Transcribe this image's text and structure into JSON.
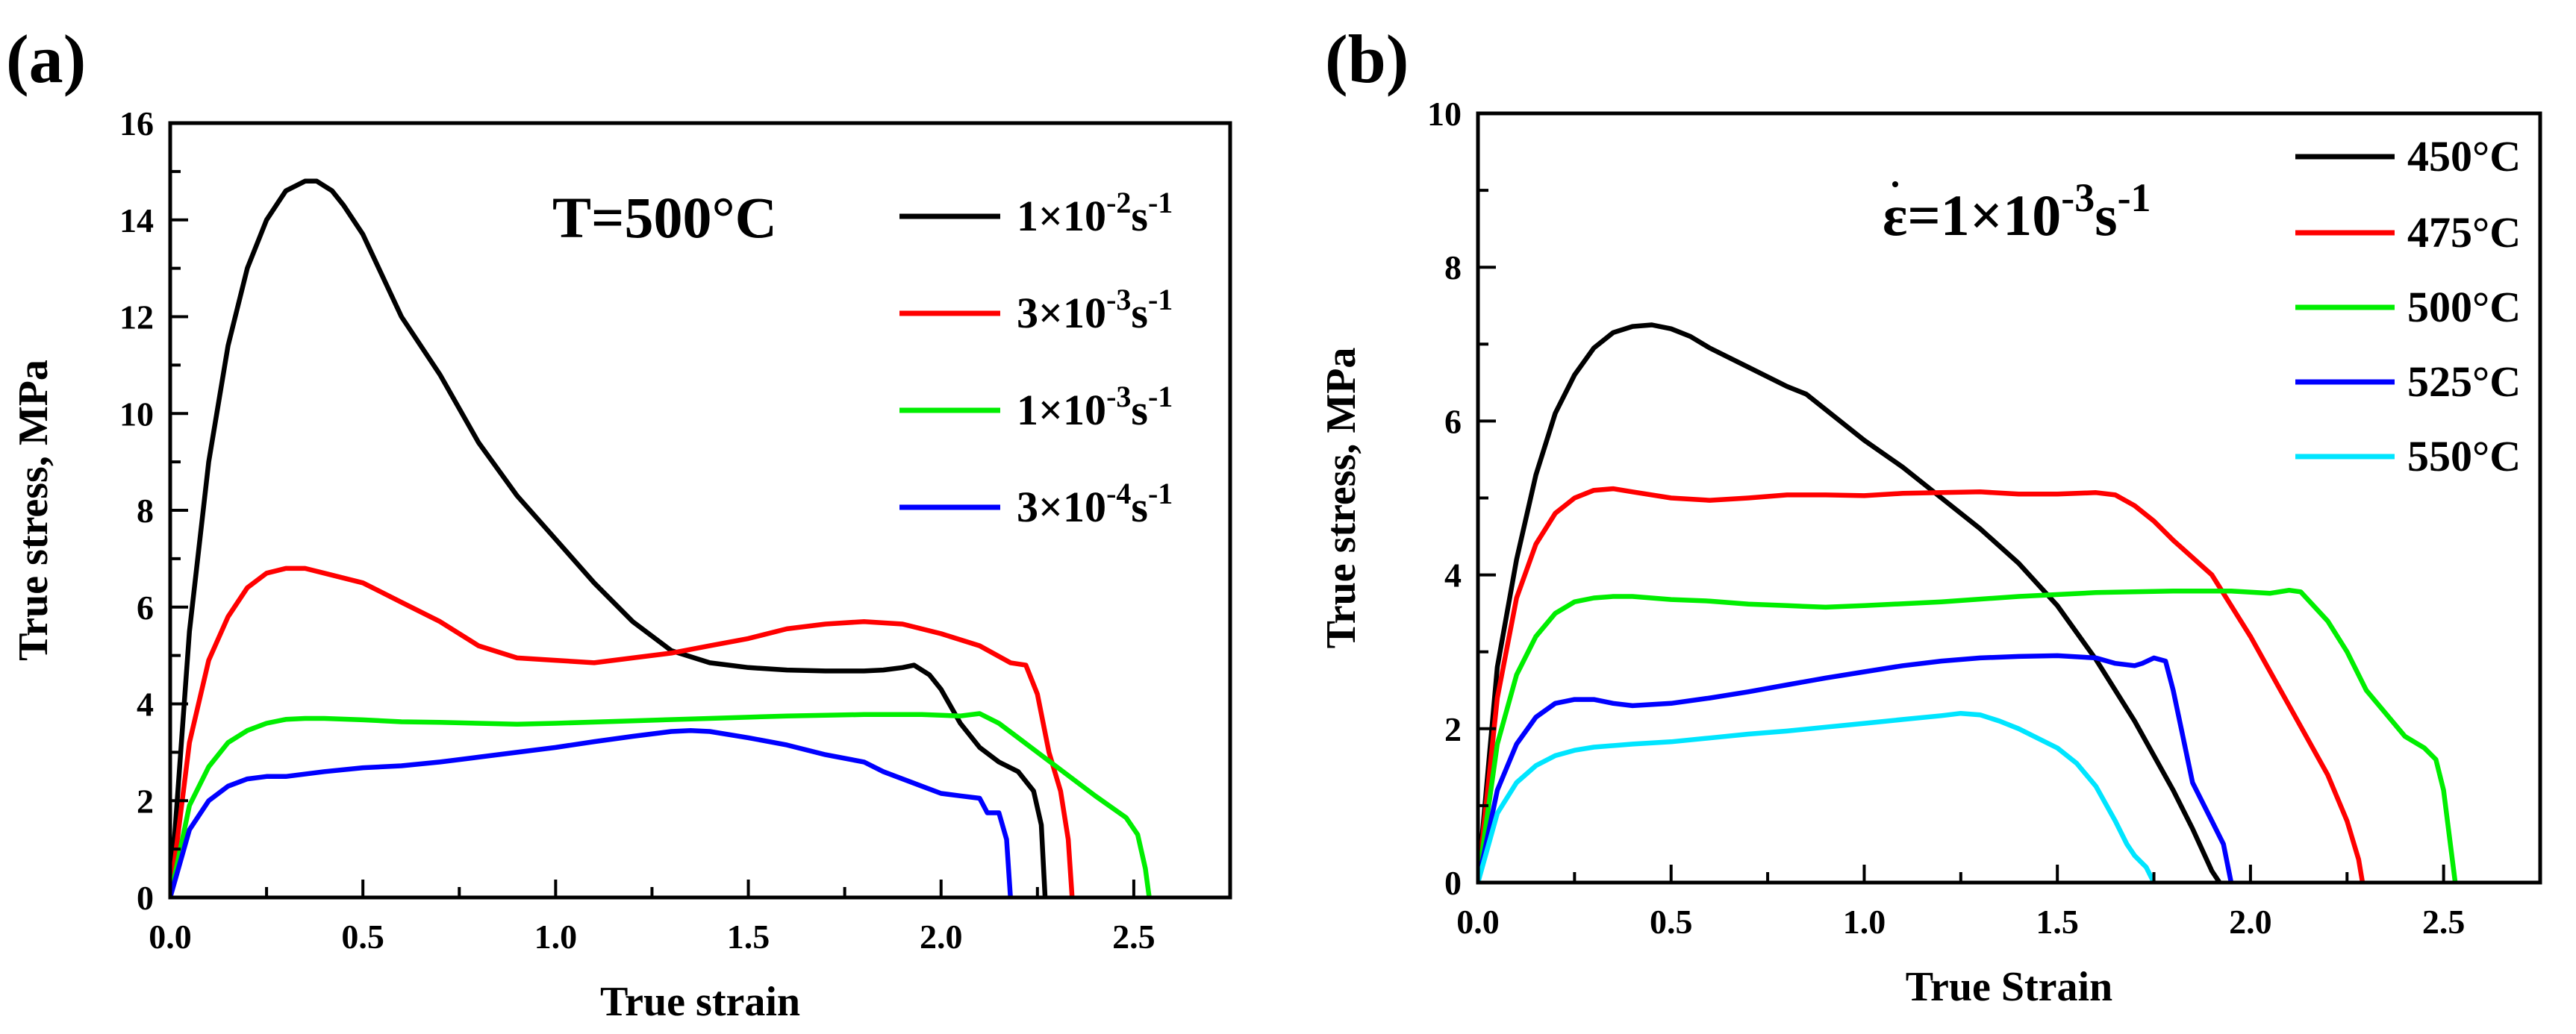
{
  "chart_data": [
    {
      "panel_label": "(a)",
      "type": "line",
      "xlabel": "True strain",
      "ylabel": "True stress, MPa",
      "xlim": [
        0.0,
        2.75
      ],
      "ylim": [
        0,
        16
      ],
      "xticks": [
        0.0,
        0.5,
        1.0,
        1.5,
        2.0,
        2.5
      ],
      "xtick_labels": [
        "0.0",
        "0.5",
        "1.0",
        "1.5",
        "2.0",
        "2.5"
      ],
      "yticks": [
        0,
        2,
        4,
        6,
        8,
        10,
        12,
        14,
        16
      ],
      "ytick_labels": [
        "0",
        "2",
        "4",
        "6",
        "8",
        "10",
        "12",
        "14",
        "16"
      ],
      "annotation": {
        "prefix": "T=500°C",
        "sup": "",
        "suffix": "",
        "sup2": ""
      },
      "legend_position": "top-right",
      "series": [
        {
          "name": "1×10-2s-1",
          "legend": {
            "base": "1×10",
            "exp": "-2",
            "unit": "s",
            "unit_exp": "-1"
          },
          "color": "#000000",
          "x": [
            0.0,
            0.05,
            0.1,
            0.15,
            0.2,
            0.25,
            0.3,
            0.35,
            0.38,
            0.42,
            0.45,
            0.5,
            0.6,
            0.7,
            0.8,
            0.9,
            1.0,
            1.1,
            1.2,
            1.3,
            1.4,
            1.5,
            1.6,
            1.7,
            1.8,
            1.85,
            1.9,
            1.93,
            1.97,
            2.0,
            2.05,
            2.1,
            2.15,
            2.2,
            2.24,
            2.26,
            2.27
          ],
          "y": [
            0,
            5.5,
            9.0,
            11.4,
            13.0,
            14.0,
            14.6,
            14.8,
            14.8,
            14.6,
            14.3,
            13.7,
            12.0,
            10.8,
            9.4,
            8.3,
            7.4,
            6.5,
            5.7,
            5.1,
            4.85,
            4.75,
            4.7,
            4.68,
            4.68,
            4.7,
            4.75,
            4.8,
            4.6,
            4.3,
            3.6,
            3.1,
            2.8,
            2.6,
            2.2,
            1.5,
            0
          ]
        },
        {
          "name": "3×10-3s-1",
          "legend": {
            "base": "3×10",
            "exp": "-3",
            "unit": "s",
            "unit_exp": "-1"
          },
          "color": "#ff0000",
          "x": [
            0.0,
            0.05,
            0.1,
            0.15,
            0.2,
            0.25,
            0.3,
            0.35,
            0.4,
            0.5,
            0.6,
            0.7,
            0.8,
            0.9,
            1.0,
            1.1,
            1.2,
            1.3,
            1.4,
            1.5,
            1.6,
            1.7,
            1.8,
            1.9,
            2.0,
            2.1,
            2.18,
            2.22,
            2.25,
            2.28,
            2.31,
            2.33,
            2.34
          ],
          "y": [
            0,
            3.2,
            4.9,
            5.8,
            6.4,
            6.7,
            6.8,
            6.8,
            6.7,
            6.5,
            6.1,
            5.7,
            5.2,
            4.95,
            4.9,
            4.85,
            4.95,
            5.05,
            5.2,
            5.35,
            5.55,
            5.65,
            5.7,
            5.65,
            5.45,
            5.2,
            4.85,
            4.8,
            4.2,
            3.0,
            2.2,
            1.2,
            0
          ]
        },
        {
          "name": "1×10-3s-1",
          "legend": {
            "base": "1×10",
            "exp": "-3",
            "unit": "s",
            "unit_exp": "-1"
          },
          "color": "#00ee00",
          "x": [
            0.0,
            0.05,
            0.1,
            0.15,
            0.2,
            0.25,
            0.3,
            0.35,
            0.4,
            0.5,
            0.6,
            0.7,
            0.8,
            0.9,
            1.0,
            1.2,
            1.4,
            1.6,
            1.8,
            1.95,
            2.05,
            2.1,
            2.15,
            2.2,
            2.3,
            2.4,
            2.48,
            2.51,
            2.53,
            2.54
          ],
          "y": [
            0,
            1.9,
            2.7,
            3.2,
            3.45,
            3.6,
            3.68,
            3.7,
            3.7,
            3.67,
            3.63,
            3.62,
            3.6,
            3.58,
            3.6,
            3.65,
            3.7,
            3.75,
            3.78,
            3.78,
            3.75,
            3.8,
            3.6,
            3.3,
            2.7,
            2.1,
            1.65,
            1.3,
            0.6,
            0
          ]
        },
        {
          "name": "3×10-4s-1",
          "legend": {
            "base": "3×10",
            "exp": "-4",
            "unit": "s",
            "unit_exp": "-1"
          },
          "color": "#0000ff",
          "x": [
            0.0,
            0.05,
            0.1,
            0.15,
            0.2,
            0.25,
            0.3,
            0.4,
            0.5,
            0.6,
            0.7,
            0.8,
            0.9,
            1.0,
            1.1,
            1.2,
            1.3,
            1.35,
            1.4,
            1.5,
            1.6,
            1.7,
            1.8,
            1.85,
            1.9,
            1.95,
            2.0,
            2.05,
            2.1,
            2.12,
            2.15,
            2.17,
            2.18
          ],
          "y": [
            0,
            1.4,
            2.0,
            2.3,
            2.45,
            2.5,
            2.5,
            2.6,
            2.68,
            2.72,
            2.8,
            2.9,
            3.0,
            3.1,
            3.22,
            3.33,
            3.43,
            3.45,
            3.43,
            3.3,
            3.15,
            2.95,
            2.8,
            2.6,
            2.45,
            2.3,
            2.15,
            2.1,
            2.05,
            1.75,
            1.75,
            1.2,
            0
          ]
        }
      ]
    },
    {
      "panel_label": "(b)",
      "type": "line",
      "xlabel": "True Strain",
      "ylabel": "True stress, MPa",
      "xlim": [
        0.0,
        2.75
      ],
      "ylim": [
        0,
        10
      ],
      "xticks": [
        0.0,
        0.5,
        1.0,
        1.5,
        2.0,
        2.5
      ],
      "xtick_labels": [
        "0.0",
        "0.5",
        "1.0",
        "1.5",
        "2.0",
        "2.5"
      ],
      "yticks": [
        0,
        2,
        4,
        6,
        8,
        10
      ],
      "ytick_labels": [
        "0",
        "2",
        "4",
        "6",
        "8",
        "10"
      ],
      "annotation": {
        "prefix": "ε=1×10",
        "sup": "-3",
        "suffix": "s",
        "sup2": "-1"
      },
      "legend_position": "top-right",
      "series": [
        {
          "name": "450°C",
          "legend": {
            "base": "450°C",
            "exp": "",
            "unit": "",
            "unit_exp": ""
          },
          "color": "#000000",
          "x": [
            0.0,
            0.05,
            0.1,
            0.15,
            0.2,
            0.25,
            0.3,
            0.35,
            0.4,
            0.45,
            0.5,
            0.55,
            0.6,
            0.7,
            0.8,
            0.85,
            0.9,
            1.0,
            1.1,
            1.2,
            1.3,
            1.4,
            1.5,
            1.6,
            1.7,
            1.8,
            1.85,
            1.9,
            1.92
          ],
          "y": [
            0,
            2.8,
            4.2,
            5.3,
            6.1,
            6.6,
            6.95,
            7.15,
            7.23,
            7.25,
            7.2,
            7.1,
            6.95,
            6.7,
            6.45,
            6.35,
            6.15,
            5.75,
            5.4,
            5.0,
            4.6,
            4.15,
            3.6,
            2.9,
            2.1,
            1.2,
            0.7,
            0.15,
            0
          ]
        },
        {
          "name": "475°C",
          "legend": {
            "base": "475°C",
            "exp": "",
            "unit": "",
            "unit_exp": ""
          },
          "color": "#ff0000",
          "x": [
            0.0,
            0.05,
            0.1,
            0.15,
            0.2,
            0.25,
            0.3,
            0.35,
            0.4,
            0.5,
            0.6,
            0.7,
            0.8,
            0.9,
            1.0,
            1.1,
            1.2,
            1.3,
            1.4,
            1.5,
            1.6,
            1.65,
            1.7,
            1.75,
            1.8,
            1.9,
            2.0,
            2.1,
            2.2,
            2.25,
            2.28,
            2.29
          ],
          "y": [
            0,
            2.4,
            3.7,
            4.4,
            4.8,
            5.0,
            5.1,
            5.12,
            5.08,
            5.0,
            4.97,
            5.0,
            5.04,
            5.04,
            5.03,
            5.06,
            5.07,
            5.08,
            5.05,
            5.05,
            5.07,
            5.04,
            4.9,
            4.7,
            4.45,
            4.0,
            3.2,
            2.3,
            1.4,
            0.8,
            0.3,
            0
          ]
        },
        {
          "name": "500°C",
          "legend": {
            "base": "500°C",
            "exp": "",
            "unit": "",
            "unit_exp": ""
          },
          "color": "#00ee00",
          "x": [
            0.0,
            0.05,
            0.1,
            0.15,
            0.2,
            0.25,
            0.3,
            0.35,
            0.4,
            0.5,
            0.6,
            0.7,
            0.8,
            0.9,
            1.0,
            1.2,
            1.4,
            1.6,
            1.8,
            1.95,
            2.05,
            2.1,
            2.13,
            2.2,
            2.25,
            2.3,
            2.35,
            2.4,
            2.45,
            2.48,
            2.5,
            2.52,
            2.53
          ],
          "y": [
            0,
            1.8,
            2.7,
            3.2,
            3.5,
            3.65,
            3.7,
            3.72,
            3.72,
            3.68,
            3.66,
            3.62,
            3.6,
            3.58,
            3.6,
            3.65,
            3.72,
            3.77,
            3.79,
            3.79,
            3.76,
            3.8,
            3.78,
            3.4,
            3.0,
            2.5,
            2.2,
            1.9,
            1.75,
            1.6,
            1.2,
            0.4,
            0
          ]
        },
        {
          "name": "525°C",
          "legend": {
            "base": "525°C",
            "exp": "",
            "unit": "",
            "unit_exp": ""
          },
          "color": "#0000ff",
          "x": [
            0.0,
            0.05,
            0.1,
            0.15,
            0.2,
            0.25,
            0.3,
            0.35,
            0.4,
            0.5,
            0.6,
            0.7,
            0.8,
            0.9,
            1.0,
            1.1,
            1.2,
            1.3,
            1.4,
            1.5,
            1.6,
            1.65,
            1.7,
            1.72,
            1.75,
            1.78,
            1.8,
            1.85,
            1.9,
            1.93,
            1.95
          ],
          "y": [
            0,
            1.2,
            1.8,
            2.15,
            2.33,
            2.38,
            2.38,
            2.33,
            2.3,
            2.33,
            2.4,
            2.48,
            2.57,
            2.66,
            2.74,
            2.82,
            2.88,
            2.92,
            2.94,
            2.95,
            2.92,
            2.85,
            2.82,
            2.85,
            2.92,
            2.88,
            2.5,
            1.3,
            0.8,
            0.5,
            0
          ]
        },
        {
          "name": "550°C",
          "legend": {
            "base": "550°C",
            "exp": "",
            "unit": "",
            "unit_exp": ""
          },
          "color": "#00e5ff",
          "x": [
            0.0,
            0.05,
            0.1,
            0.15,
            0.2,
            0.25,
            0.3,
            0.4,
            0.5,
            0.6,
            0.7,
            0.8,
            0.9,
            1.0,
            1.1,
            1.2,
            1.25,
            1.3,
            1.35,
            1.4,
            1.5,
            1.55,
            1.6,
            1.65,
            1.68,
            1.7,
            1.73,
            1.75
          ],
          "y": [
            0,
            0.9,
            1.3,
            1.52,
            1.65,
            1.72,
            1.76,
            1.8,
            1.83,
            1.88,
            1.93,
            1.97,
            2.02,
            2.07,
            2.12,
            2.17,
            2.2,
            2.18,
            2.1,
            2.0,
            1.75,
            1.55,
            1.25,
            0.8,
            0.5,
            0.35,
            0.2,
            0
          ]
        }
      ]
    }
  ]
}
